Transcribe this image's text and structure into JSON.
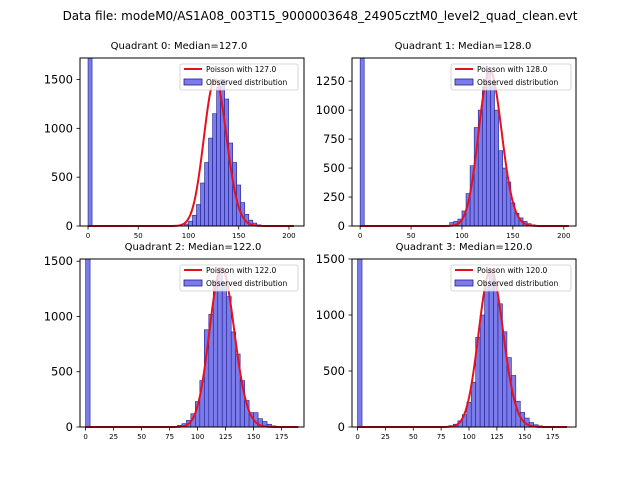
{
  "suptitle": "Data file: modeM0/AS1A08_003T15_9000003648_24905cztM0_level2_quad_clean.evt",
  "colors": {
    "bar_fill": "#7b7bea",
    "bar_edge": "#1f1f8f",
    "poisson_line": "#e8111b",
    "axis": "#000000"
  },
  "chart_data": [
    {
      "type": "bar",
      "title": "Quadrant 0: Median=127.0",
      "xlim": [
        -8,
        215
      ],
      "ylim": [
        0,
        1720
      ],
      "xticks": [
        0,
        50,
        100,
        150,
        200
      ],
      "xtick_labels": [
        "0",
        "50",
        "100",
        "150",
        "200"
      ],
      "yticks": [
        0,
        500,
        1000,
        1500
      ],
      "bin_width": 4,
      "bins": [
        [
          0,
          1720
        ],
        [
          96,
          20
        ],
        [
          100,
          50
        ],
        [
          104,
          110
        ],
        [
          108,
          220
        ],
        [
          112,
          440
        ],
        [
          116,
          650
        ],
        [
          120,
          900
        ],
        [
          124,
          1150
        ],
        [
          128,
          1420
        ],
        [
          132,
          1500
        ],
        [
          136,
          1300
        ],
        [
          140,
          850
        ],
        [
          144,
          650
        ],
        [
          148,
          420
        ],
        [
          152,
          240
        ],
        [
          156,
          120
        ],
        [
          160,
          60
        ],
        [
          164,
          30
        ],
        [
          168,
          12
        ]
      ],
      "poisson_mean": 127.0,
      "poisson_x_range": [
        0,
        205
      ],
      "legend": [
        "Poisson with 127.0",
        "Observed distribution"
      ],
      "legend_loc": "upper right"
    },
    {
      "type": "bar",
      "title": "Quadrant 1: Median=128.0",
      "xlim": [
        -8,
        212
      ],
      "ylim": [
        0,
        1450
      ],
      "xticks": [
        0,
        50,
        100,
        150,
        200
      ],
      "xtick_labels": [
        "0",
        "50",
        "100",
        "150",
        "200"
      ],
      "yticks": [
        0,
        250,
        500,
        750,
        1000,
        1250
      ],
      "bin_width": 4,
      "bins": [
        [
          0,
          1450
        ],
        [
          88,
          30
        ],
        [
          92,
          40
        ],
        [
          96,
          60
        ],
        [
          100,
          130
        ],
        [
          104,
          280
        ],
        [
          108,
          520
        ],
        [
          112,
          850
        ],
        [
          116,
          1000
        ],
        [
          120,
          1200
        ],
        [
          124,
          1340
        ],
        [
          128,
          1250
        ],
        [
          132,
          1000
        ],
        [
          136,
          650
        ],
        [
          140,
          500
        ],
        [
          144,
          380
        ],
        [
          148,
          200
        ],
        [
          152,
          110
        ],
        [
          156,
          70
        ],
        [
          160,
          40
        ],
        [
          164,
          20
        ],
        [
          168,
          10
        ]
      ],
      "poisson_mean": 128.0,
      "poisson_x_range": [
        0,
        205
      ],
      "legend": [
        "Poisson with 128.0",
        "Observed distribution"
      ],
      "legend_loc": "upper right"
    },
    {
      "type": "bar",
      "title": "Quadrant 2: Median=122.0",
      "xlim": [
        -5,
        195
      ],
      "ylim": [
        0,
        1520
      ],
      "xticks": [
        0,
        25,
        50,
        75,
        100,
        125,
        150,
        175
      ],
      "xtick_labels": [
        "0",
        "25",
        "50",
        "75",
        "100",
        "125",
        "150",
        "175"
      ],
      "yticks": [
        0,
        500,
        1000,
        1500
      ],
      "bin_width": 4,
      "bins": [
        [
          0,
          1520
        ],
        [
          82,
          15
        ],
        [
          86,
          30
        ],
        [
          90,
          60
        ],
        [
          94,
          120
        ],
        [
          98,
          230
        ],
        [
          102,
          420
        ],
        [
          106,
          880
        ],
        [
          110,
          1020
        ],
        [
          114,
          1320
        ],
        [
          118,
          1440
        ],
        [
          122,
          1270
        ],
        [
          126,
          1180
        ],
        [
          130,
          860
        ],
        [
          134,
          660
        ],
        [
          138,
          420
        ],
        [
          142,
          240
        ],
        [
          146,
          130
        ],
        [
          150,
          130
        ],
        [
          154,
          75
        ],
        [
          158,
          50
        ],
        [
          162,
          25
        ],
        [
          166,
          10
        ]
      ],
      "poisson_mean": 122.0,
      "poisson_x_range": [
        0,
        190
      ],
      "legend": [
        "Poisson with 122.0",
        "Observed distribution"
      ],
      "legend_loc": "upper right"
    },
    {
      "type": "bar",
      "title": "Quadrant 3: Median=120.0",
      "xlim": [
        -5,
        196
      ],
      "ylim": [
        0,
        1500
      ],
      "xticks": [
        0,
        25,
        50,
        75,
        100,
        125,
        150,
        175
      ],
      "xtick_labels": [
        "0",
        "25",
        "50",
        "75",
        "100",
        "125",
        "150",
        "175"
      ],
      "yticks": [
        0,
        500,
        1000,
        1500
      ],
      "bin_width": 4,
      "bins": [
        [
          0,
          1500
        ],
        [
          82,
          12
        ],
        [
          86,
          25
        ],
        [
          90,
          55
        ],
        [
          94,
          110
        ],
        [
          98,
          220
        ],
        [
          102,
          400
        ],
        [
          106,
          800
        ],
        [
          110,
          1000
        ],
        [
          114,
          1250
        ],
        [
          118,
          1400
        ],
        [
          122,
          1280
        ],
        [
          126,
          1100
        ],
        [
          130,
          850
        ],
        [
          134,
          620
        ],
        [
          138,
          460
        ],
        [
          142,
          230
        ],
        [
          146,
          130
        ],
        [
          150,
          80
        ],
        [
          154,
          40
        ],
        [
          158,
          20
        ],
        [
          162,
          10
        ]
      ],
      "poisson_mean": 120.0,
      "poisson_x_range": [
        0,
        188
      ],
      "legend": [
        "Poisson with 120.0",
        "Observed distribution"
      ],
      "legend_loc": "upper right"
    }
  ]
}
